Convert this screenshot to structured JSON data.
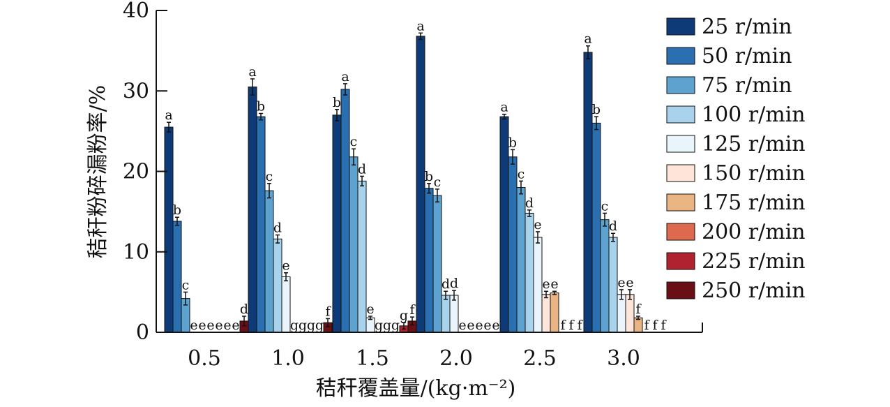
{
  "chart_data": {
    "type": "bar",
    "xlabel": "秸秆覆盖量/(kg·m⁻²)",
    "ylabel": "秸秆粉碎漏粉率/%",
    "ylim": [
      0,
      40
    ],
    "yticks": [
      "0",
      "10",
      "20",
      "30",
      "40"
    ],
    "categories": [
      "0.5",
      "1.0",
      "1.5",
      "2.0",
      "2.5",
      "3.0"
    ],
    "grid": false,
    "legend_position": "right",
    "series": [
      {
        "name": "25 r/min",
        "color": "#0e3a78",
        "values": [
          25.5,
          30.5,
          27.0,
          36.8,
          26.8,
          34.8
        ],
        "errors": [
          0.6,
          1.0,
          0.7,
          0.4,
          0.3,
          0.8
        ],
        "labels": [
          "a",
          "a",
          "b",
          "a",
          "a",
          "a"
        ]
      },
      {
        "name": "50 r/min",
        "color": "#2a6fb0",
        "values": [
          13.8,
          26.8,
          30.2,
          17.9,
          21.8,
          26.0
        ],
        "errors": [
          0.5,
          0.4,
          0.7,
          0.6,
          0.9,
          0.8
        ],
        "labels": [
          "b",
          "b",
          "a",
          "b",
          "b",
          "b"
        ]
      },
      {
        "name": "75 r/min",
        "color": "#5ea3cf",
        "values": [
          4.2,
          17.6,
          21.8,
          17.0,
          18.0,
          14.0
        ],
        "errors": [
          0.8,
          0.9,
          1.0,
          0.8,
          0.8,
          0.8
        ],
        "labels": [
          "c",
          "c",
          "c",
          "c",
          "c",
          "c"
        ]
      },
      {
        "name": "100 r/min",
        "color": "#a9d3ec",
        "values": [
          0.0,
          11.6,
          18.8,
          4.6,
          14.8,
          11.8
        ],
        "errors": [
          0.0,
          0.5,
          0.6,
          0.5,
          0.4,
          0.5
        ],
        "labels": [
          "e",
          "d",
          "d",
          "d",
          "d",
          "d"
        ]
      },
      {
        "name": "125 r/min",
        "color": "#e9f4fb",
        "values": [
          0.0,
          6.9,
          1.8,
          4.6,
          11.8,
          4.7
        ],
        "errors": [
          0.0,
          0.5,
          0.2,
          0.6,
          0.7,
          0.6
        ],
        "labels": [
          "e",
          "e",
          "e",
          "d",
          "e",
          "e"
        ]
      },
      {
        "name": "150 r/min",
        "color": "#fde5da",
        "values": [
          0.0,
          0.0,
          0.0,
          0.0,
          4.7,
          4.7
        ],
        "errors": [
          0.0,
          0.0,
          0.0,
          0.0,
          0.4,
          0.6
        ],
        "labels": [
          "e",
          "g",
          "g",
          "e",
          "e",
          "e"
        ]
      },
      {
        "name": "175 r/min",
        "color": "#ebb483",
        "values": [
          0.0,
          0.0,
          0.0,
          0.0,
          4.9,
          1.8
        ],
        "errors": [
          0.0,
          0.0,
          0.0,
          0.0,
          0.2,
          0.2
        ],
        "labels": [
          "e",
          "g",
          "g",
          "e",
          "e",
          "f"
        ]
      },
      {
        "name": "200 r/min",
        "color": "#dd6a4e",
        "values": [
          0.0,
          0.0,
          0.0,
          0.0,
          0.0,
          0.0
        ],
        "errors": [
          0.0,
          0.0,
          0.0,
          0.0,
          0.0,
          0.0
        ],
        "labels": [
          "e",
          "g",
          "g",
          "e",
          "f",
          "f"
        ]
      },
      {
        "name": "225 r/min",
        "color": "#b0222f",
        "values": [
          0.0,
          0.0,
          0.8,
          0.0,
          0.0,
          0.0
        ],
        "errors": [
          0.0,
          0.0,
          0.4,
          0.0,
          0.0,
          0.0
        ],
        "labels": [
          "e",
          "g",
          "g",
          "e",
          "f",
          "f"
        ]
      },
      {
        "name": "250 r/min",
        "color": "#6b0f16",
        "values": [
          1.4,
          1.2,
          1.4,
          0.0,
          0.0,
          0.0
        ],
        "errors": [
          0.6,
          0.5,
          0.5,
          0.0,
          0.0,
          0.0
        ],
        "labels": [
          "d",
          "f",
          "f",
          "e",
          "f",
          "f"
        ]
      }
    ]
  }
}
